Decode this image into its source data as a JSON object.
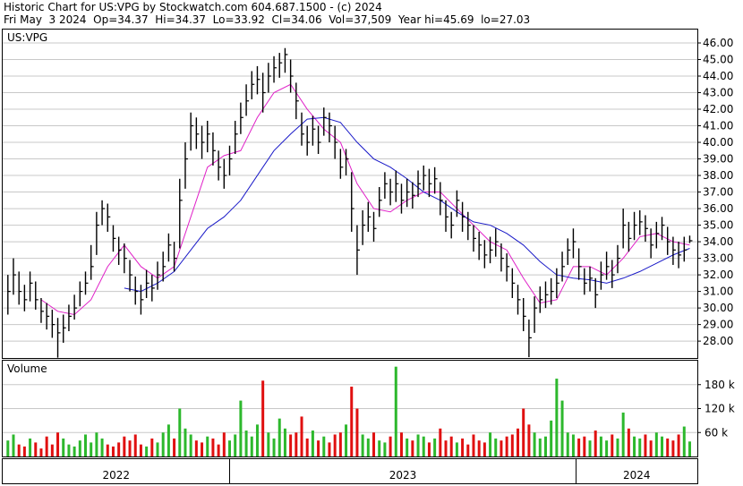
{
  "chart_data": {
    "type": "ohlc",
    "title": "Historic Chart for US:VPG by Stockwatch.com 604.687.1500 - (c) 2024",
    "subtitle": "Fri May  3 2024  Op=34.37  Hi=34.37  Lo=33.92  Cl=34.06  Vol=37,509  Year hi=45.69  lo=27.03",
    "symbol": "US:VPG",
    "color": "#000000",
    "grid": true,
    "xlim": [
      2022.345,
      2024.35
    ],
    "xticks": [
      2022,
      2023,
      2024
    ],
    "ylim": [
      26.98,
      46.81
    ],
    "yticks": [
      {
        "value": 28,
        "label": "28.00"
      },
      {
        "value": 29,
        "label": "29.00"
      },
      {
        "value": 30,
        "label": "30.00"
      },
      {
        "value": 31,
        "label": "31.00"
      },
      {
        "value": 32,
        "label": "32.00"
      },
      {
        "value": 33,
        "label": "33.00"
      },
      {
        "value": 34,
        "label": "34.00"
      },
      {
        "value": 35,
        "label": "35.00"
      },
      {
        "value": 36,
        "label": "36.00"
      },
      {
        "value": 37,
        "label": "37.00"
      },
      {
        "value": 38,
        "label": "38.00"
      },
      {
        "value": 39,
        "label": "39.00"
      },
      {
        "value": 40,
        "label": "40.00"
      },
      {
        "value": 41,
        "label": "41.00"
      },
      {
        "value": 42,
        "label": "42.00"
      },
      {
        "value": 43,
        "label": "43.00"
      },
      {
        "value": 44,
        "label": "44.00"
      },
      {
        "value": 45,
        "label": "45.00"
      },
      {
        "value": 46,
        "label": "46.00"
      }
    ],
    "x": [
      2022.36,
      2022.376,
      2022.392,
      2022.408,
      2022.424,
      2022.44,
      2022.456,
      2022.472,
      2022.488,
      2022.504,
      2022.52,
      2022.536,
      2022.552,
      2022.568,
      2022.584,
      2022.6,
      2022.616,
      2022.632,
      2022.648,
      2022.664,
      2022.68,
      2022.696,
      2022.712,
      2022.728,
      2022.744,
      2022.76,
      2022.776,
      2022.792,
      2022.808,
      2022.824,
      2022.84,
      2022.856,
      2022.872,
      2022.888,
      2022.904,
      2022.92,
      2022.936,
      2022.952,
      2022.968,
      2022.984,
      2023,
      2023.016,
      2023.032,
      2023.048,
      2023.064,
      2023.08,
      2023.096,
      2023.112,
      2023.128,
      2023.144,
      2023.16,
      2023.176,
      2023.192,
      2023.208,
      2023.224,
      2023.24,
      2023.256,
      2023.272,
      2023.288,
      2023.304,
      2023.32,
      2023.336,
      2023.352,
      2023.368,
      2023.384,
      2023.4,
      2023.416,
      2023.432,
      2023.448,
      2023.464,
      2023.48,
      2023.496,
      2023.512,
      2023.528,
      2023.544,
      2023.56,
      2023.576,
      2023.592,
      2023.608,
      2023.624,
      2023.64,
      2023.656,
      2023.672,
      2023.688,
      2023.704,
      2023.72,
      2023.736,
      2023.752,
      2023.768,
      2023.784,
      2023.8,
      2023.816,
      2023.832,
      2023.848,
      2023.864,
      2023.88,
      2023.896,
      2023.912,
      2023.928,
      2023.944,
      2023.96,
      2023.976,
      2023.992,
      2024.008,
      2024.024,
      2024.04,
      2024.056,
      2024.072,
      2024.088,
      2024.104,
      2024.12,
      2024.136,
      2024.152,
      2024.168,
      2024.184,
      2024.2,
      2024.216,
      2024.232,
      2024.248,
      2024.264,
      2024.28,
      2024.296,
      2024.312,
      2024.328
    ],
    "high": [
      32.0,
      33.0,
      32.2,
      31.4,
      32.2,
      31.6,
      30.6,
      30.3,
      29.9,
      29.4,
      29.6,
      30.2,
      30.8,
      31.6,
      32.2,
      33.8,
      35.8,
      36.5,
      36.3,
      35.0,
      34.3,
      33.9,
      32.9,
      31.9,
      31.4,
      32.3,
      32.0,
      32.8,
      33.4,
      34.5,
      34.0,
      37.8,
      40.0,
      41.8,
      41.5,
      41.0,
      41.3,
      40.6,
      39.5,
      39.0,
      39.8,
      41.3,
      42.4,
      43.5,
      44.3,
      44.6,
      44.2,
      44.8,
      45.2,
      45.4,
      45.69,
      45.0,
      43.6,
      41.8,
      41.0,
      41.6,
      41.0,
      42.1,
      41.8,
      41.0,
      39.6,
      39.6,
      38.2,
      35.0,
      35.9,
      36.4,
      35.8,
      37.3,
      38.2,
      37.8,
      38.3,
      37.5,
      37.8,
      37.6,
      38.3,
      38.6,
      38.4,
      38.5,
      37.6,
      36.5,
      35.8,
      37.1,
      36.4,
      35.8,
      35.0,
      34.6,
      34.1,
      34.3,
      34.8,
      33.9,
      33.3,
      32.4,
      31.4,
      30.6,
      29.3,
      30.7,
      31.3,
      31.6,
      31.8,
      32.4,
      33.4,
      34.2,
      34.8,
      33.6,
      32.4,
      32.5,
      31.8,
      32.8,
      33.4,
      32.9,
      33.8,
      36.0,
      35.2,
      35.8,
      35.9,
      35.6,
      34.8,
      35.2,
      35.5,
      34.9,
      34.3,
      34.0,
      34.3,
      34.37
    ],
    "low": [
      29.6,
      30.8,
      30.2,
      29.8,
      30.4,
      29.9,
      29.1,
      28.7,
      28.2,
      27.0,
      27.9,
      28.6,
      29.3,
      30.1,
      30.8,
      31.7,
      33.2,
      35.0,
      34.6,
      33.4,
      32.6,
      32.1,
      31.0,
      30.2,
      29.6,
      30.6,
      30.4,
      31.1,
      31.6,
      32.8,
      32.2,
      33.6,
      37.2,
      39.5,
      39.6,
      39.0,
      39.4,
      38.6,
      37.7,
      37.2,
      38.0,
      39.3,
      40.5,
      41.6,
      42.6,
      42.9,
      41.8,
      43.0,
      43.6,
      43.9,
      44.2,
      43.0,
      41.4,
      39.8,
      39.2,
      39.8,
      39.3,
      40.4,
      40.0,
      39.0,
      37.8,
      38.0,
      34.6,
      32.0,
      33.8,
      34.6,
      34.0,
      35.5,
      36.6,
      36.2,
      36.4,
      35.7,
      36.1,
      36.0,
      36.7,
      37.1,
      36.7,
      36.9,
      35.6,
      34.6,
      34.2,
      35.5,
      34.6,
      34.1,
      33.4,
      32.9,
      32.4,
      32.7,
      33.1,
      32.2,
      31.6,
      30.6,
      29.6,
      28.6,
      27.03,
      28.5,
      29.7,
      30.0,
      30.2,
      30.6,
      31.6,
      32.6,
      33.0,
      31.7,
      30.8,
      31.0,
      30.0,
      31.1,
      31.7,
      31.2,
      32.1,
      33.6,
      33.4,
      34.1,
      34.4,
      34.0,
      33.0,
      33.6,
      34.1,
      33.2,
      32.6,
      32.4,
      32.8,
      33.92
    ],
    "close": [
      31.0,
      32.0,
      31.0,
      30.5,
      31.5,
      30.5,
      29.8,
      29.5,
      29.0,
      28.5,
      28.8,
      29.5,
      30.0,
      31.0,
      31.5,
      32.5,
      35.0,
      36.0,
      35.5,
      34.2,
      33.5,
      33.0,
      32.0,
      31.0,
      30.5,
      31.5,
      31.2,
      32.0,
      32.5,
      33.8,
      33.0,
      36.5,
      39.0,
      41.0,
      40.5,
      40.0,
      40.5,
      39.5,
      38.5,
      38.0,
      39.0,
      40.5,
      41.5,
      42.5,
      43.5,
      43.8,
      43.0,
      44.0,
      44.5,
      44.8,
      45.3,
      44.0,
      42.5,
      40.5,
      40.0,
      40.8,
      40.0,
      41.5,
      41.0,
      40.0,
      38.5,
      39.0,
      36.0,
      33.5,
      35.0,
      35.5,
      34.8,
      36.5,
      37.5,
      37.0,
      37.5,
      36.5,
      37.0,
      36.8,
      37.5,
      38.0,
      37.5,
      37.8,
      36.5,
      35.5,
      35.0,
      36.5,
      35.5,
      35.0,
      34.2,
      33.8,
      33.2,
      33.5,
      34.0,
      33.0,
      32.5,
      31.5,
      30.5,
      29.5,
      28.2,
      30.0,
      30.5,
      30.8,
      31.0,
      31.5,
      32.5,
      33.5,
      34.0,
      32.5,
      31.5,
      31.8,
      30.8,
      32.0,
      32.5,
      32.0,
      33.0,
      35.0,
      34.2,
      35.0,
      35.2,
      34.8,
      33.8,
      34.5,
      35.0,
      34.0,
      33.5,
      33.2,
      33.5,
      34.06
    ],
    "overlays": [
      {
        "color": "#e020c8",
        "x": [
          2022.36,
          2022.408,
          2022.456,
          2022.504,
          2022.552,
          2022.6,
          2022.648,
          2022.696,
          2022.744,
          2022.792,
          2022.84,
          2022.888,
          2022.936,
          2022.984,
          2023.032,
          2023.08,
          2023.128,
          2023.176,
          2023.224,
          2023.272,
          2023.32,
          2023.368,
          2023.416,
          2023.464,
          2023.512,
          2023.56,
          2023.608,
          2023.656,
          2023.704,
          2023.752,
          2023.8,
          2023.848,
          2023.896,
          2023.944,
          2023.992,
          2024.04,
          2024.088,
          2024.136,
          2024.184,
          2024.232,
          2024.28,
          2024.328
        ],
        "values": [
          null,
          null,
          30.5,
          29.8,
          29.6,
          30.5,
          32.5,
          33.8,
          32.5,
          31.8,
          32.5,
          35.5,
          38.5,
          39.2,
          39.5,
          41.5,
          43.0,
          43.5,
          42.0,
          40.8,
          40.0,
          37.5,
          36.0,
          35.8,
          36.5,
          37.0,
          37.0,
          36.0,
          35.0,
          34.0,
          33.5,
          31.8,
          30.3,
          30.5,
          32.5,
          32.5,
          32.0,
          33.0,
          34.3,
          34.5,
          34.0,
          33.8
        ]
      },
      {
        "color": "#1a1ac8",
        "x": [
          2022.36,
          2022.408,
          2022.456,
          2022.504,
          2022.552,
          2022.6,
          2022.648,
          2022.696,
          2022.744,
          2022.792,
          2022.84,
          2022.888,
          2022.936,
          2022.984,
          2023.032,
          2023.08,
          2023.128,
          2023.176,
          2023.224,
          2023.272,
          2023.32,
          2023.368,
          2023.416,
          2023.464,
          2023.512,
          2023.56,
          2023.608,
          2023.656,
          2023.704,
          2023.752,
          2023.8,
          2023.848,
          2023.896,
          2023.944,
          2023.992,
          2024.04,
          2024.088,
          2024.136,
          2024.184,
          2024.232,
          2024.28,
          2024.328
        ],
        "values": [
          null,
          null,
          null,
          null,
          null,
          null,
          null,
          31.2,
          31.0,
          31.5,
          32.2,
          33.5,
          34.8,
          35.5,
          36.5,
          38.0,
          39.5,
          40.5,
          41.4,
          41.5,
          41.2,
          40.0,
          39.0,
          38.5,
          37.8,
          37.0,
          36.5,
          35.8,
          35.2,
          35.0,
          34.5,
          33.8,
          32.8,
          32.0,
          31.8,
          31.7,
          31.5,
          31.8,
          32.2,
          32.7,
          33.2,
          33.6
        ]
      }
    ],
    "volume": {
      "label": "Volume",
      "colors": {
        "up": "#2db82d",
        "down": "#e01010"
      },
      "ylim": [
        0,
        240000
      ],
      "yticks": [
        {
          "value": 60000,
          "label": "60 k"
        },
        {
          "value": 120000,
          "label": "120 k"
        },
        {
          "value": 180000,
          "label": "180 k"
        }
      ],
      "values": [
        40000,
        55000,
        30000,
        25000,
        45000,
        35000,
        20000,
        50000,
        30000,
        60000,
        45000,
        30000,
        25000,
        40000,
        55000,
        35000,
        60000,
        45000,
        30000,
        25000,
        35000,
        50000,
        40000,
        55000,
        30000,
        25000,
        45000,
        35000,
        60000,
        80000,
        45000,
        120000,
        70000,
        55000,
        40000,
        35000,
        50000,
        45000,
        30000,
        60000,
        40000,
        55000,
        140000,
        65000,
        50000,
        80000,
        190000,
        60000,
        45000,
        95000,
        70000,
        55000,
        60000,
        100000,
        45000,
        65000,
        40000,
        50000,
        35000,
        55000,
        60000,
        80000,
        175000,
        120000,
        55000,
        45000,
        60000,
        40000,
        35000,
        50000,
        225000,
        60000,
        45000,
        40000,
        55000,
        50000,
        35000,
        45000,
        70000,
        40000,
        50000,
        35000,
        45000,
        30000,
        55000,
        40000,
        35000,
        60000,
        45000,
        40000,
        50000,
        55000,
        70000,
        120000,
        80000,
        60000,
        45000,
        50000,
        90000,
        195000,
        140000,
        60000,
        55000,
        45000,
        50000,
        40000,
        65000,
        50000,
        40000,
        55000,
        45000,
        110000,
        70000,
        50000,
        45000,
        55000,
        40000,
        60000,
        50000,
        45000,
        40000,
        55000,
        75000,
        37509
      ]
    }
  }
}
